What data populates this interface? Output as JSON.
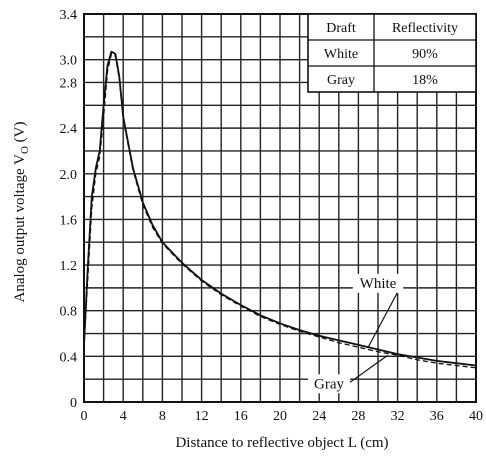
{
  "chart_data": {
    "type": "line",
    "title": "",
    "xlabel": "Distance to reflective object L (cm)",
    "ylabel": "Analog output voltage V",
    "ylabel_subscript": "O",
    "ylabel_unit": "(V)",
    "xlim": [
      0,
      40
    ],
    "ylim": [
      0,
      3.4
    ],
    "x_ticks": [
      0,
      4,
      8,
      12,
      16,
      20,
      24,
      28,
      32,
      36,
      40
    ],
    "y_ticks": [
      "0",
      "0.4",
      "0.8",
      "1.2",
      "1.6",
      "2.0",
      "2.4",
      "2.8",
      "3.0",
      "3.4"
    ],
    "y_tick_values": [
      0,
      0.4,
      0.8,
      1.2,
      1.6,
      2.0,
      2.4,
      2.8,
      3.0,
      3.4
    ],
    "grid": true,
    "x_minor_step": 2,
    "y_minor_step": 0.2,
    "series": [
      {
        "name": "White",
        "style": "solid",
        "color": "#111111",
        "points": [
          [
            0,
            0.5
          ],
          [
            0.4,
            1.2
          ],
          [
            0.8,
            1.8
          ],
          [
            1.2,
            2.05
          ],
          [
            1.6,
            2.2
          ],
          [
            2.0,
            2.6
          ],
          [
            2.4,
            2.95
          ],
          [
            2.8,
            3.07
          ],
          [
            3.2,
            3.05
          ],
          [
            3.6,
            2.85
          ],
          [
            4,
            2.5
          ],
          [
            5,
            2.05
          ],
          [
            6,
            1.75
          ],
          [
            7,
            1.55
          ],
          [
            8,
            1.4
          ],
          [
            10,
            1.22
          ],
          [
            12,
            1.07
          ],
          [
            14,
            0.95
          ],
          [
            16,
            0.85
          ],
          [
            18,
            0.76
          ],
          [
            20,
            0.69
          ],
          [
            22,
            0.63
          ],
          [
            24,
            0.58
          ],
          [
            26,
            0.54
          ],
          [
            28,
            0.5
          ],
          [
            30,
            0.46
          ],
          [
            32,
            0.42
          ],
          [
            34,
            0.39
          ],
          [
            36,
            0.36
          ],
          [
            38,
            0.34
          ],
          [
            40,
            0.32
          ]
        ]
      },
      {
        "name": "Gray",
        "style": "dashed",
        "color": "#111111",
        "points": [
          [
            0,
            0.5
          ],
          [
            0.4,
            1.1
          ],
          [
            0.8,
            1.7
          ],
          [
            1.2,
            2.0
          ],
          [
            1.6,
            2.15
          ],
          [
            2.0,
            2.5
          ],
          [
            2.4,
            2.9
          ],
          [
            2.8,
            3.05
          ],
          [
            3.2,
            3.03
          ],
          [
            3.6,
            2.83
          ],
          [
            4,
            2.48
          ],
          [
            5,
            2.03
          ],
          [
            6,
            1.73
          ],
          [
            7,
            1.53
          ],
          [
            8,
            1.39
          ],
          [
            10,
            1.21
          ],
          [
            12,
            1.06
          ],
          [
            14,
            0.94
          ],
          [
            16,
            0.84
          ],
          [
            18,
            0.75
          ],
          [
            20,
            0.68
          ],
          [
            22,
            0.62
          ],
          [
            24,
            0.57
          ],
          [
            26,
            0.52
          ],
          [
            28,
            0.48
          ],
          [
            30,
            0.44
          ],
          [
            32,
            0.41
          ],
          [
            34,
            0.37
          ],
          [
            36,
            0.34
          ],
          [
            38,
            0.32
          ],
          [
            40,
            0.3
          ]
        ]
      }
    ],
    "legend_table": {
      "headers": [
        "Draft",
        "Reflectivity"
      ],
      "rows": [
        [
          "White",
          "90%"
        ],
        [
          "Gray",
          "18%"
        ]
      ],
      "placement": "top-right"
    },
    "annotations": [
      {
        "text": "White",
        "series": "White",
        "label_at": [
          30,
          1.0
        ],
        "arrow_to": [
          29,
          0.48
        ]
      },
      {
        "text": "Gray",
        "series": "Gray",
        "label_at": [
          25,
          0.12
        ],
        "arrow_to": [
          31,
          0.41
        ]
      }
    ]
  }
}
